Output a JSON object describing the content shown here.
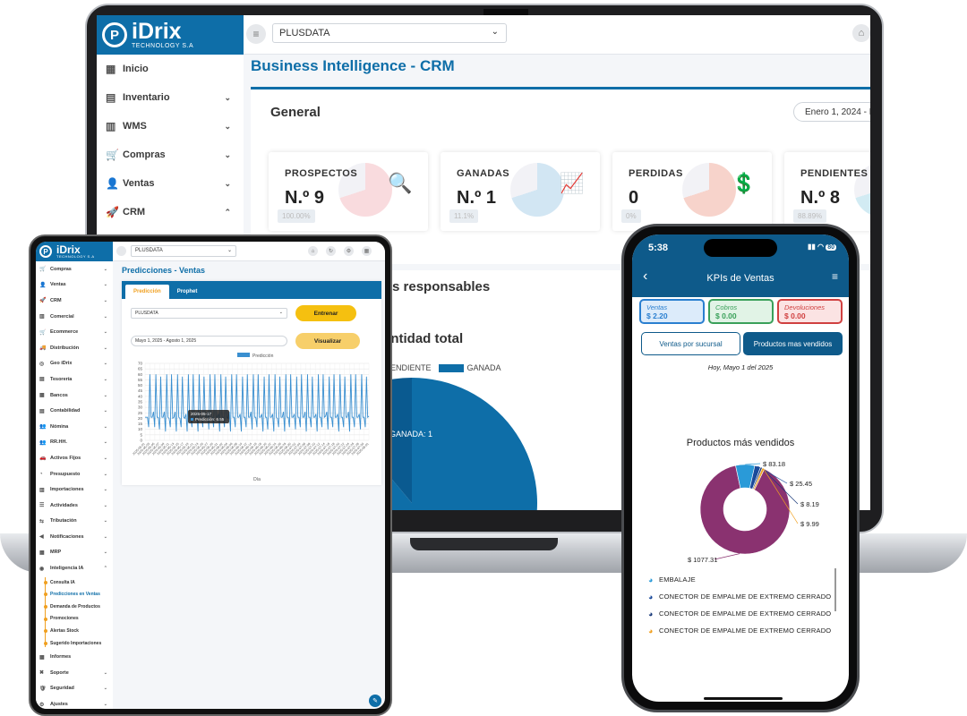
{
  "laptop": {
    "brand": {
      "mark": "P",
      "name": "iDrix",
      "tagline": "TECHNOLOGY S.A"
    },
    "company_select": "PLUSDATA",
    "sidebar": [
      {
        "label": "Inicio",
        "icon": "grid-icon",
        "glyph": "▦",
        "chevron": ""
      },
      {
        "label": "Inventario",
        "icon": "clipboard-icon",
        "glyph": "▤",
        "chevron": "⌄"
      },
      {
        "label": "WMS",
        "icon": "boxes-icon",
        "glyph": "▥",
        "chevron": "⌄"
      },
      {
        "label": "Compras",
        "icon": "cart-icon",
        "glyph": "🛒",
        "chevron": "⌄"
      },
      {
        "label": "Ventas",
        "icon": "person-icon",
        "glyph": "👤",
        "chevron": "⌄"
      },
      {
        "label": "CRM",
        "icon": "rocket-icon",
        "glyph": "🚀",
        "chevron": "⌃"
      }
    ],
    "page_title": "Business Intelligence - CRM",
    "card_title": "General",
    "date_range": "Enero 1, 2024 - D",
    "kpis": [
      {
        "label": "PROSPECTOS",
        "value": "N.º 9",
        "pct": "100.00%",
        "accent": "#e8707c",
        "icon": "search-user-icon",
        "glyph": "🔍"
      },
      {
        "label": "GANADAS",
        "value": "N.º 1",
        "pct": "11.1%",
        "accent": "#4a9ad0",
        "icon": "growth-chart-icon",
        "glyph": "📈"
      },
      {
        "label": "PERDIDAS",
        "value": "0",
        "pct": "0%",
        "accent": "#e05030",
        "icon": "money-down-icon",
        "glyph": "💲"
      },
      {
        "label": "PENDIENTES",
        "value": "N.º 8",
        "pct": "88.89%",
        "accent": "#4ab0d0",
        "icon": "pending-icon",
        "glyph": "⏳"
      }
    ],
    "responsables_title": "s responsables",
    "cantidad_title": "antidad total",
    "legend": [
      "PENDIENTE",
      "GANADA"
    ],
    "pie_label": "GANADA: 1",
    "side_text": "ns",
    "colors": {
      "primary": "#0e6ea8",
      "dark": "#0e5a8a"
    }
  },
  "tablet": {
    "brand": {
      "mark": "P",
      "name": "iDrix",
      "tagline": "TECHNOLOGY S.A"
    },
    "company_select": "PLUSDATA",
    "top_icons": [
      {
        "icon": "home-icon",
        "glyph": "⌂"
      },
      {
        "icon": "sync-icon",
        "glyph": "↻"
      },
      {
        "icon": "settings-icon",
        "glyph": "⚙"
      },
      {
        "icon": "apps-icon",
        "glyph": "▦"
      }
    ],
    "sidebar": [
      {
        "label": "Compras",
        "glyph": "🛒",
        "chevron": "⌄"
      },
      {
        "label": "Ventas",
        "glyph": "👤",
        "chevron": "⌄"
      },
      {
        "label": "CRM",
        "glyph": "🚀",
        "chevron": "⌄"
      },
      {
        "label": "Comercial",
        "glyph": "▥",
        "chevron": "⌄"
      },
      {
        "label": "Ecommerce",
        "glyph": "🛒",
        "chevron": "⌄"
      },
      {
        "label": "Distribución",
        "glyph": "🚚",
        "chevron": "⌄"
      },
      {
        "label": "Geo iDrix",
        "glyph": "◎",
        "chevron": "⌄"
      },
      {
        "label": "Tesorería",
        "glyph": "▤",
        "chevron": "⌄"
      },
      {
        "label": "Bancos",
        "glyph": "▦",
        "chevron": "⌄"
      },
      {
        "label": "Contabilidad",
        "glyph": "▤",
        "chevron": "⌄"
      },
      {
        "label": "Nómina",
        "glyph": "👥",
        "chevron": "⌄"
      },
      {
        "label": "RR.HH.",
        "glyph": "👥",
        "chevron": "⌄"
      },
      {
        "label": "Activos Fijos",
        "glyph": "🚗",
        "chevron": "⌄"
      },
      {
        "label": "Presupuesto",
        "glyph": "◔",
        "chevron": "⌄"
      },
      {
        "label": "Importaciones",
        "glyph": "▥",
        "chevron": "⌄"
      },
      {
        "label": "Actividades",
        "glyph": "☰",
        "chevron": "⌄"
      },
      {
        "label": "Tributación",
        "glyph": "⇆",
        "chevron": "⌄"
      },
      {
        "label": "Notificaciones",
        "glyph": "◀",
        "chevron": "⌄"
      },
      {
        "label": "MRP",
        "glyph": "▦",
        "chevron": "⌄"
      },
      {
        "label": "Inteligencia IA",
        "glyph": "◉",
        "chevron": "⌃"
      }
    ],
    "sub_items": [
      "Consulta IA",
      "Predicciones en Ventas",
      "Demanda de Productos",
      "Promociones",
      "Alertas Stock",
      "Sugerido Importaciones"
    ],
    "sidebar_bottom": [
      {
        "label": "Informes",
        "glyph": "▦",
        "chevron": ""
      },
      {
        "label": "Soporte",
        "glyph": "✖",
        "chevron": "⌄"
      },
      {
        "label": "Seguridad",
        "glyph": "🛡",
        "chevron": "⌄"
      },
      {
        "label": "Ajustes",
        "glyph": "⚙",
        "chevron": "⌄"
      }
    ],
    "page_title": "Predicciones - Ventas",
    "tabs": [
      "Predicción",
      "Prophet"
    ],
    "model_select": "PLUSDATA",
    "train_button": "Entrenar",
    "date_range": "Mayo 1, 2025 - Agosto 1, 2025",
    "view_button": "Visualizar",
    "tooltip": {
      "date": "2025-05-17",
      "label": "Predicción: 6.55"
    }
  },
  "phone": {
    "time": "5:38",
    "battery": "80",
    "title": "KPIs de Ventas",
    "kpis": [
      {
        "label": "Ventas",
        "value": "$ 2.20",
        "color": "#2a7fd0",
        "bg": "#dcebfa"
      },
      {
        "label": "Cobros",
        "value": "$ 0.00",
        "color": "#3aa05a",
        "bg": "#e1f3e6"
      },
      {
        "label": "Devoluciones",
        "value": "$ 0.00",
        "color": "#d04040",
        "bg": "#fbe3e3"
      }
    ],
    "buttons": [
      "Ventas por sucursal",
      "Productos mas vendidos"
    ],
    "date": "Hoy, Mayo 1 del 2025",
    "list": [
      {
        "label": "EMBALAJE",
        "color": "#2a9ad8"
      },
      {
        "label": "CONECTOR DE EMPALME DE EXTREMO CERRADO",
        "color": "#1a4a9a"
      },
      {
        "label": "CONECTOR DE EMPALME DE EXTREMO CERRADO",
        "color": "#1a3a7a"
      },
      {
        "label": "CONECTOR DE EMPALME DE EXTREMO CERRADO",
        "color": "#f0a020"
      }
    ]
  },
  "chart_data": [
    {
      "type": "line",
      "title": "",
      "series": [
        {
          "name": "Predicción",
          "color": "#3a8fd0",
          "values": [
            21,
            21,
            21,
            12,
            60,
            21,
            21,
            26,
            12,
            60,
            21,
            21,
            10,
            58,
            21,
            21,
            26,
            8,
            60,
            21,
            20,
            12,
            60,
            20,
            21,
            26,
            8,
            60,
            21,
            20,
            12,
            58,
            21,
            20,
            24,
            8,
            60,
            21,
            21,
            12,
            60,
            20,
            21,
            26,
            8,
            60,
            21,
            21,
            12,
            58,
            21,
            21,
            26,
            10,
            60,
            21,
            21,
            12,
            60,
            21,
            21,
            24,
            8,
            60,
            21,
            21,
            12,
            58,
            21,
            20,
            26,
            8,
            60,
            21,
            21,
            12,
            60,
            21,
            21,
            24,
            8,
            58,
            21,
            21,
            12,
            60,
            21,
            21,
            26,
            10,
            60,
            21,
            21,
            12,
            60,
            21,
            21,
            24,
            8,
            58,
            21,
            21,
            10,
            60,
            21,
            21,
            24,
            8,
            60,
            21,
            20,
            12,
            58,
            21,
            21,
            26,
            8,
            60,
            21,
            21,
            12,
            60,
            21,
            21,
            24,
            10,
            58,
            21,
            21,
            12,
            60,
            21,
            21,
            26,
            8,
            60,
            21,
            21,
            12,
            58,
            21,
            21,
            24,
            8,
            60,
            21,
            21,
            12,
            60,
            21,
            22,
            26,
            10,
            58,
            21,
            21,
            12,
            60,
            21,
            21,
            24,
            8,
            60,
            21,
            21,
            12,
            58,
            21,
            21,
            26,
            8,
            60,
            21,
            21,
            12,
            60,
            21,
            21,
            24,
            10,
            60,
            21,
            21,
            12,
            58,
            21,
            22
          ]
        }
      ],
      "ylim": [
        0,
        70
      ],
      "yticks": [
        0,
        5,
        10,
        15,
        20,
        25,
        30,
        35,
        40,
        45,
        50,
        55,
        60,
        65,
        70
      ],
      "xlabel": "Día",
      "xticks": [
        "2025-05-01",
        "2025-05-03",
        "2025-05-05",
        "2025-05-07",
        "2025-05-09",
        "2025-05-11",
        "2025-05-13",
        "2025-05-15",
        "2025-05-17",
        "2025-05-19",
        "2025-05-21",
        "2025-05-23",
        "2025-05-25",
        "2025-05-27",
        "2025-05-29",
        "2025-05-31",
        "2025-06-02",
        "2025-06-04",
        "2025-06-06",
        "2025-06-08",
        "2025-06-10",
        "2025-06-12",
        "2025-06-14",
        "2025-06-16",
        "2025-06-18",
        "2025-06-20",
        "2025-06-22",
        "2025-06-24",
        "2025-06-26",
        "2025-06-28",
        "2025-06-30",
        "2025-07-02",
        "2025-07-04",
        "2025-07-06",
        "2025-07-08",
        "2025-07-10",
        "2025-07-12",
        "2025-07-14",
        "2025-07-16",
        "2025-07-18",
        "2025-07-20",
        "2025-07-22",
        "2025-07-24",
        "2025-07-26",
        "2025-07-28",
        "2025-07-30",
        "2025-08-01"
      ],
      "grid": true,
      "legend": "top"
    },
    {
      "type": "pie",
      "title": "Productos más vendidos",
      "donut": true,
      "slices": [
        {
          "value": 1077.31,
          "label": "$ 1077.31",
          "color": "#8a3270"
        },
        {
          "value": 83.18,
          "label": "$ 83.18",
          "color": "#2a9ad8"
        },
        {
          "value": 25.45,
          "label": "$ 25.45",
          "color": "#1a4a9a"
        },
        {
          "value": 8.19,
          "label": "$ 8.19",
          "color": "#1a3a7a"
        },
        {
          "value": 9.99,
          "label": "$ 9.99",
          "color": "#f0a020"
        }
      ]
    },
    {
      "type": "pie",
      "title": "",
      "slices": [
        {
          "value": 8,
          "label": "PENDIENTE",
          "color": "#0e6ea8"
        },
        {
          "value": 1,
          "label": "GANADA: 1",
          "color": "#0a5a90"
        }
      ]
    }
  ]
}
